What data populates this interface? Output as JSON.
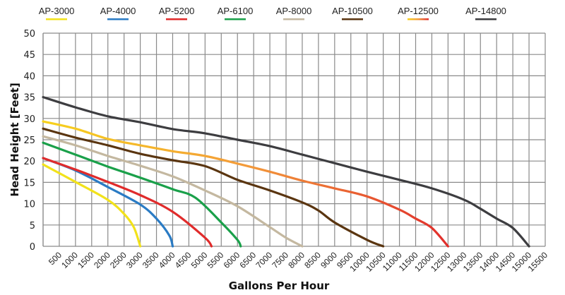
{
  "chart_data": {
    "type": "line",
    "title": "",
    "xlabel": "Gallons Per Hour",
    "ylabel": "Head Height [Feet]",
    "xlim": [
      0,
      15500
    ],
    "ylim": [
      0,
      50
    ],
    "x_ticks": [
      500,
      1000,
      1500,
      2000,
      2500,
      3000,
      3500,
      4000,
      4500,
      5000,
      5500,
      6000,
      6500,
      7000,
      7500,
      8000,
      8500,
      9000,
      9500,
      10000,
      10500,
      11000,
      11500,
      12000,
      12500,
      13000,
      13500,
      14000,
      14500,
      15000,
      15500
    ],
    "y_ticks": [
      0,
      5,
      10,
      15,
      20,
      25,
      30,
      35,
      40,
      45,
      50
    ],
    "grid": true,
    "legend_position": "top",
    "series": [
      {
        "name": "AP-3000",
        "color": "#f2e21b",
        "x": [
          0,
          1000,
          2000,
          2500,
          2800,
          3000
        ],
        "y": [
          19.2,
          15.1,
          10.9,
          7.6,
          4.5,
          0
        ]
      },
      {
        "name": "AP-4000",
        "color": "#2a7bc4",
        "x": [
          0,
          1000,
          2000,
          3000,
          3500,
          3900,
          4000
        ],
        "y": [
          20.7,
          17.8,
          13.9,
          9.8,
          6.5,
          2.5,
          0
        ]
      },
      {
        "name": "AP-5200",
        "color": "#e02b2b",
        "x": [
          0,
          1000,
          2000,
          3000,
          4000,
          5000,
          5200
        ],
        "y": [
          20.7,
          18,
          15.1,
          12,
          8.1,
          2,
          0
        ]
      },
      {
        "name": "AP-6100",
        "color": "#1aa04a",
        "x": [
          0,
          1000,
          2000,
          3000,
          4000,
          4700,
          5500,
          6000,
          6100
        ],
        "y": [
          24.3,
          21.5,
          18.7,
          16.1,
          13.4,
          11.4,
          5.6,
          1.5,
          0
        ]
      },
      {
        "name": "AP-8000",
        "color": "#c4b8a0",
        "x": [
          0,
          1000,
          2000,
          3000,
          4000,
          5000,
          6000,
          7000,
          7500,
          8000
        ],
        "y": [
          25.8,
          23.7,
          21.2,
          18.9,
          16.4,
          13.1,
          9.4,
          4.5,
          2,
          0
        ]
      },
      {
        "name": "AP-10500",
        "color": "#5a3510",
        "x": [
          0,
          1000,
          2000,
          3000,
          4000,
          5000,
          6000,
          7000,
          8000,
          8500,
          9000,
          10000,
          10500
        ],
        "y": [
          27.6,
          25.5,
          23.7,
          21.7,
          20.2,
          18.8,
          15.6,
          13.1,
          10.3,
          8.4,
          5.6,
          1.5,
          0
        ]
      },
      {
        "name": "AP-12500",
        "color": "#f39a3a",
        "gradient": [
          "#f7d21c",
          "#f39a3a",
          "#e02b2b"
        ],
        "x": [
          0,
          1000,
          2000,
          3000,
          4000,
          5000,
          6000,
          7000,
          8000,
          9000,
          10000,
          11000,
          11500,
          12000,
          12500
        ],
        "y": [
          29.3,
          27.6,
          25.2,
          23.7,
          22.3,
          21.2,
          19.4,
          17.5,
          15.4,
          13.6,
          11.7,
          8.6,
          6.5,
          4.3,
          0
        ]
      },
      {
        "name": "AP-14800",
        "color": "#3d3d40",
        "x": [
          0,
          1000,
          2000,
          3000,
          4000,
          5000,
          6000,
          7000,
          8000,
          9000,
          10000,
          11000,
          12000,
          13000,
          13500,
          14000,
          14500,
          15000
        ],
        "y": [
          35,
          32.6,
          30.5,
          29.1,
          27.5,
          26.5,
          25,
          23.5,
          21.5,
          19.5,
          17.5,
          15.6,
          13.6,
          10.9,
          8.8,
          6.5,
          4.3,
          0
        ]
      }
    ]
  }
}
